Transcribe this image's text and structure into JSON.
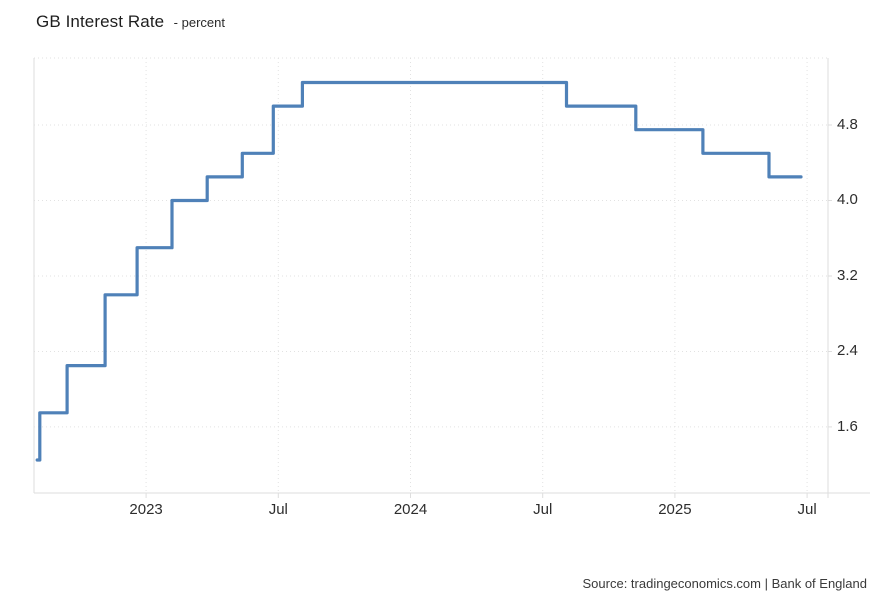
{
  "header": {
    "title": "GB Interest Rate",
    "unit_label": "- percent"
  },
  "footer": {
    "source": "Source: tradingeconomics.com | Bank of England"
  },
  "chart_data": {
    "type": "line",
    "subtype": "step-after",
    "title": "GB Interest Rate",
    "ylabel": "percent",
    "legend": "none",
    "grid": "dotted",
    "line_color": "#4f81b8",
    "grid_color": "#e2e2e2",
    "axis_color": "#dedede",
    "label_color": "#2d2d2d",
    "x_range": [
      2022.576,
      2025.579
    ],
    "y_range": [
      0.9,
      5.51
    ],
    "x_ticks": [
      {
        "t": 2023.0,
        "label": "2023"
      },
      {
        "t": 2023.5,
        "label": "Jul"
      },
      {
        "t": 2024.0,
        "label": "2024"
      },
      {
        "t": 2024.5,
        "label": "Jul"
      },
      {
        "t": 2025.0,
        "label": "2025"
      },
      {
        "t": 2025.5,
        "label": "Jul"
      }
    ],
    "y_ticks": [
      {
        "v": 1.6,
        "label": "1.6"
      },
      {
        "v": 2.4,
        "label": "2.4"
      },
      {
        "v": 3.2,
        "label": "3.2"
      },
      {
        "v": 4.0,
        "label": "4.0"
      },
      {
        "v": 4.8,
        "label": "4.8"
      }
    ],
    "series": [
      {
        "name": "GB Interest Rate",
        "unit": "percent",
        "end_t": 2025.477,
        "points": [
          {
            "t": 2022.588,
            "v": 1.25
          },
          {
            "t": 2022.598,
            "v": 1.75
          },
          {
            "t": 2022.701,
            "v": 2.25
          },
          {
            "t": 2022.845,
            "v": 3.0
          },
          {
            "t": 2022.966,
            "v": 3.5
          },
          {
            "t": 2023.098,
            "v": 4.0
          },
          {
            "t": 2023.231,
            "v": 4.25
          },
          {
            "t": 2023.364,
            "v": 4.5
          },
          {
            "t": 2023.481,
            "v": 5.0
          },
          {
            "t": 2023.591,
            "v": 5.25
          },
          {
            "t": 2024.59,
            "v": 5.0
          },
          {
            "t": 2024.852,
            "v": 4.75
          },
          {
            "t": 2025.106,
            "v": 4.5
          },
          {
            "t": 2025.356,
            "v": 4.25
          }
        ]
      }
    ]
  }
}
